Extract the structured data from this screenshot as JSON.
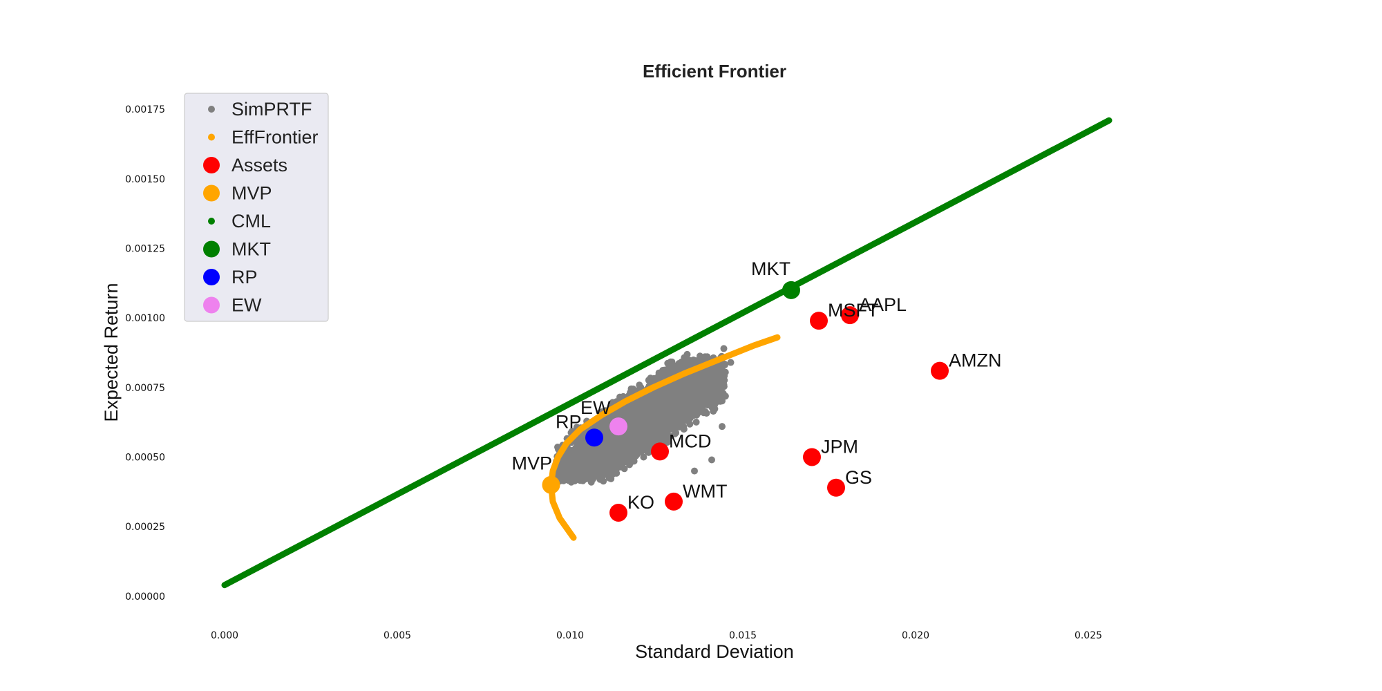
{
  "chart_data": {
    "type": "scatter",
    "title": "Efficient Frontier",
    "xlabel": "Standard Deviation",
    "ylabel": "Expected Return",
    "xlim": [
      -0.0012,
      0.0295
    ],
    "ylim": [
      -8e-05,
      0.0018
    ],
    "xticks": [
      "0.000",
      "0.005",
      "0.010",
      "0.015",
      "0.020",
      "0.025"
    ],
    "xtick_values": [
      0,
      0.005,
      0.01,
      0.015,
      0.02,
      0.025
    ],
    "yticks": [
      "0.00000",
      "0.00025",
      "0.00050",
      "0.00075",
      "0.00100",
      "0.00125",
      "0.00150",
      "0.00175"
    ],
    "ytick_values": [
      0,
      0.00025,
      0.0005,
      0.00075,
      0.001,
      0.00125,
      0.0015,
      0.00175
    ],
    "grid": false,
    "legend_position": "top-left",
    "legend": [
      {
        "name": "SimPRTF",
        "color": "#808080",
        "marker": "small"
      },
      {
        "name": "EffFrontier",
        "color": "#FFA500",
        "marker": "small"
      },
      {
        "name": "Assets",
        "color": "#FF0000",
        "marker": "large"
      },
      {
        "name": "MVP",
        "color": "#FFA500",
        "marker": "large"
      },
      {
        "name": "CML",
        "color": "#008000",
        "marker": "small"
      },
      {
        "name": "MKT",
        "color": "#008000",
        "marker": "large"
      },
      {
        "name": "RP",
        "color": "#0000FF",
        "marker": "large"
      },
      {
        "name": "EW",
        "color": "#EE82EE",
        "marker": "large"
      }
    ],
    "cml": {
      "name": "CML",
      "color": "#008000",
      "x": [
        0.0,
        0.0256
      ],
      "y": [
        4e-05,
        0.00171
      ]
    },
    "efficient_frontier": {
      "name": "EffFrontier",
      "color": "#FFA500",
      "x": [
        0.0101,
        0.0097,
        0.0095,
        0.00945,
        0.0095,
        0.00965,
        0.0099,
        0.0103,
        0.0109,
        0.0116,
        0.0124,
        0.0133,
        0.0143,
        0.0153,
        0.016
      ],
      "y": [
        0.00021,
        0.00028,
        0.00034,
        0.0004,
        0.00045,
        0.0005,
        0.00055,
        0.0006,
        0.00065,
        0.0007,
        0.00075,
        0.0008,
        0.00085,
        0.0009,
        0.00093
      ]
    },
    "simulated_portfolios": {
      "name": "SimPRTF",
      "color": "#808080",
      "x_range": [
        0.0096,
        0.0147
      ],
      "y_range": [
        0.0004,
        0.00088
      ],
      "outliers": [
        [
          0.01445,
          0.00076
        ],
        [
          0.01465,
          0.00084
        ],
        [
          0.01445,
          0.00089
        ],
        [
          0.0144,
          0.00061
        ],
        [
          0.0141,
          0.00049
        ],
        [
          0.0136,
          0.00045
        ],
        [
          0.0142,
          0.0007
        ]
      ]
    },
    "assets": {
      "name": "Assets",
      "color": "#FF0000",
      "points": [
        {
          "label": "AAPL",
          "x": 0.0181,
          "y": 0.00101
        },
        {
          "label": "MSFT",
          "x": 0.0172,
          "y": 0.00099
        },
        {
          "label": "AMZN",
          "x": 0.0207,
          "y": 0.00081
        },
        {
          "label": "JPM",
          "x": 0.017,
          "y": 0.0005
        },
        {
          "label": "GS",
          "x": 0.0177,
          "y": 0.00039
        },
        {
          "label": "MCD",
          "x": 0.0126,
          "y": 0.00052
        },
        {
          "label": "WMT",
          "x": 0.013,
          "y": 0.00034
        },
        {
          "label": "KO",
          "x": 0.0114,
          "y": 0.0003
        }
      ]
    },
    "special_points": [
      {
        "label": "MKT",
        "x": 0.0164,
        "y": 0.0011,
        "color": "#008000"
      },
      {
        "label": "MVP",
        "x": 0.00945,
        "y": 0.0004,
        "color": "#FFA500"
      },
      {
        "label": "RP",
        "x": 0.0107,
        "y": 0.00057,
        "color": "#0000FF"
      },
      {
        "label": "EW",
        "x": 0.0114,
        "y": 0.00061,
        "color": "#EE82EE"
      }
    ]
  }
}
